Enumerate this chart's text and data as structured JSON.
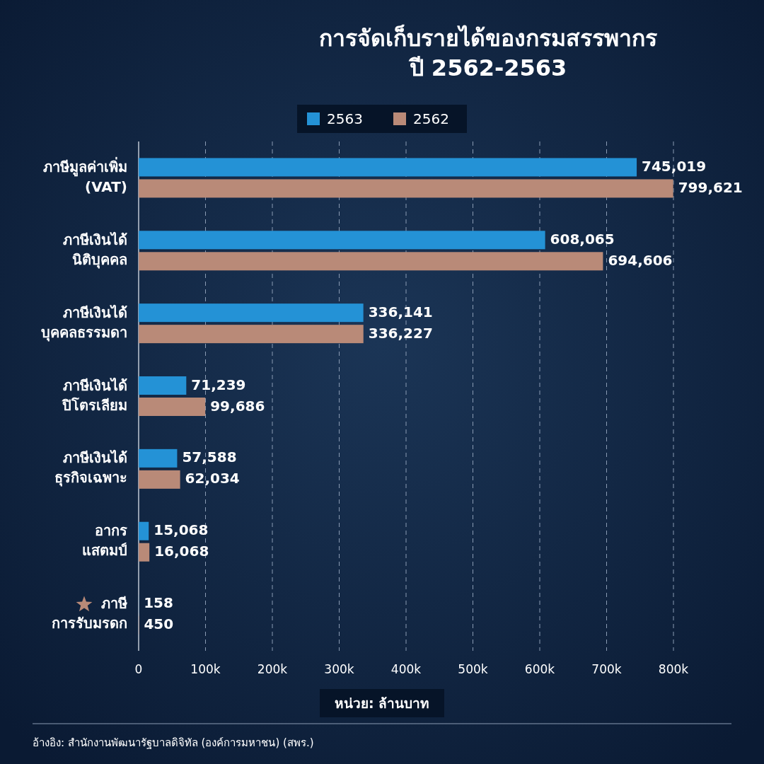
{
  "chart_data": {
    "type": "bar",
    "orientation": "horizontal",
    "title": "การจัดเก็บรายได้ของกรมสรรพากร\nปี 2562-2563",
    "categories": [
      "ภาษีมูลค่าเพิ่ม\n(VAT)",
      "ภาษีเงินได้\nนิติบุคคล",
      "ภาษีเงินได้\nบุคคลธรรมดา",
      "ภาษีเงินได้\nปิโตรเลียม",
      "ภาษีเงินได้\nธุรกิจเฉพาะ",
      "อากร\nแสตมป์",
      "ภาษี\nการรับมรดก"
    ],
    "series": [
      {
        "name": "2563",
        "color": "#2492d6",
        "values": [
          745019,
          608065,
          336141,
          71239,
          57588,
          15068,
          158
        ],
        "value_labels": [
          "745,019",
          "608,065",
          "336,141",
          "71,239",
          "57,588",
          "15,068",
          "158"
        ]
      },
      {
        "name": "2562",
        "color": "#b98a78",
        "values": [
          799621,
          694606,
          336227,
          99686,
          62034,
          16068,
          450
        ],
        "value_labels": [
          "799,621",
          "694,606",
          "336,227",
          "99,686",
          "62,034",
          "16,068",
          "450"
        ]
      }
    ],
    "xlim": [
      0,
      800000
    ],
    "xticks": [
      0,
      {
        "value": 100000,
        "label": "100k"
      },
      {
        "value": 200000,
        "label": "200k"
      },
      {
        "value": 300000,
        "label": "300k"
      },
      {
        "value": 400000,
        "label": "400k"
      },
      {
        "value": 500000,
        "label": "500k"
      },
      {
        "value": 600000,
        "label": "600k"
      },
      {
        "value": 700000,
        "label": "700k"
      },
      {
        "value": 800000,
        "label": "800k"
      }
    ],
    "grid": "x",
    "legend": "top",
    "annotations": [
      "หน่วย: ล้านบาท",
      "อ้างอิง: สำนักงานพัฒนารัฐบาลดิจิทัล (องค์การมหาชน) (สพร.)"
    ]
  }
}
